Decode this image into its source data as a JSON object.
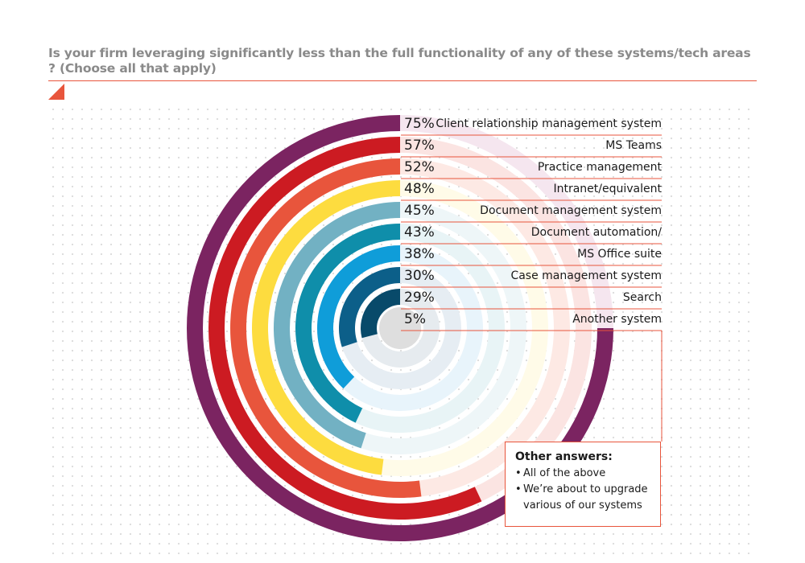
{
  "title": "Is your firm leveraging significantly less than the full functionality of any of these systems/tech areas ? (Choose all that apply)",
  "colors": {
    "accent": "#e8553c",
    "text": "#1a1a1a",
    "title": "#8a8a8a"
  },
  "chart_data": {
    "type": "radial-bar",
    "title": "Is your firm leveraging significantly less than the full functionality of any of these systems/tech areas ? (Choose all that apply)",
    "unit": "%",
    "max_value": 100,
    "grid": false,
    "legend": "labels-right",
    "categories": [
      "Client relationship management system",
      "MS Teams",
      "Practice management",
      "Intranet/equivalent",
      "Document management system",
      "Document automation/",
      "MS Office suite",
      "Case management system",
      "Search",
      "Another system"
    ],
    "values": [
      75,
      57,
      52,
      48,
      45,
      43,
      38,
      30,
      29,
      5
    ],
    "labels": [
      "75%",
      "57%",
      "52%",
      "48%",
      "45%",
      "43%",
      "38%",
      "30%",
      "29%",
      "5%"
    ],
    "colors": [
      "#7b2461",
      "#cc1b22",
      "#e8553c",
      "#fddc3f",
      "#72b1c3",
      "#0f8eaa",
      "#0f9dd9",
      "#0c5f89",
      "#084a6a",
      "#111111"
    ],
    "track_colors": [
      "#f5e6ef",
      "#fbe4e2",
      "#fde9e4",
      "#fffbe8",
      "#eef6f8",
      "#e8f4f6",
      "#e8f4fb",
      "#e6edf3",
      "#e6ebef",
      "#dedede"
    ]
  },
  "other_answers": {
    "heading": "Other answers:",
    "items": [
      "All of the above",
      "We’re about to upgrade various of our systems"
    ]
  }
}
